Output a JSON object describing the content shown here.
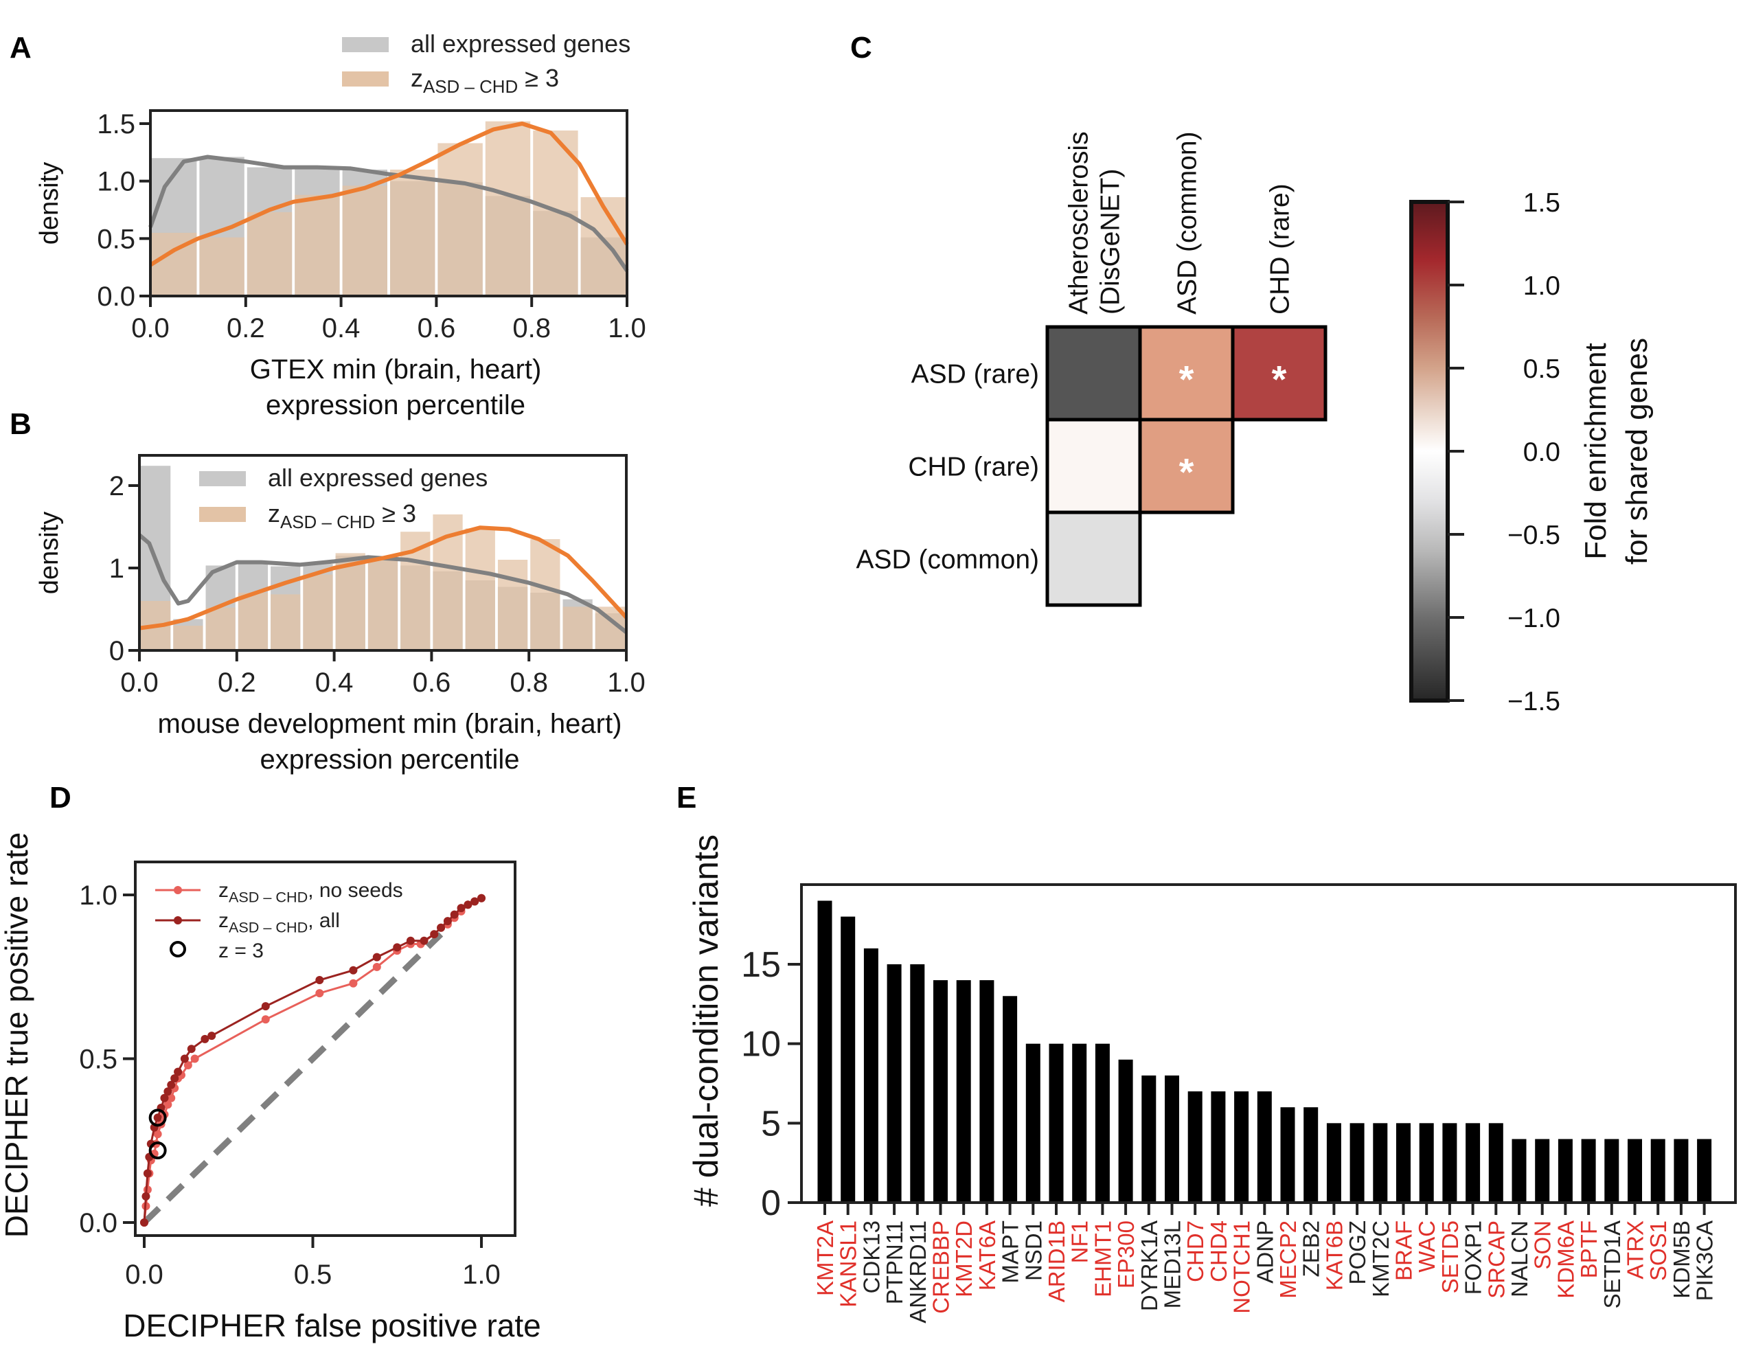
{
  "panels": {
    "A": "A",
    "B": "B",
    "C": "C",
    "D": "D",
    "E": "E"
  },
  "chart_data": [
    {
      "id": "A",
      "type": "bar",
      "subtype": "histogram_with_kde",
      "xlabel": [
        "GTEX min (brain, heart)",
        "expression percentile"
      ],
      "ylabel": "density",
      "xlim": [
        0,
        1
      ],
      "ylim": [
        0,
        1.6
      ],
      "xticks": [
        "0.0",
        "0.2",
        "0.4",
        "0.6",
        "0.8",
        "1.0"
      ],
      "xtick_values": [
        0,
        0.2,
        0.4,
        0.6,
        0.8,
        1.0
      ],
      "yticks": [
        "0.0",
        "0.5",
        "1.0",
        "1.5"
      ],
      "ytick_values": [
        0,
        0.5,
        1.0,
        1.5
      ],
      "bin_edges": [
        0,
        0.1,
        0.2,
        0.3,
        0.4,
        0.5,
        0.6,
        0.7,
        0.8,
        0.9,
        1.0
      ],
      "legend": {
        "position": "top",
        "entries": [
          {
            "label": "all expressed genes",
            "color": "#c8c8c8"
          },
          {
            "label_main": "z",
            "label_sub": "ASD – CHD",
            "label_tail": " ≥ 3",
            "color": "#e3c3a6"
          }
        ]
      },
      "series": [
        {
          "name": "all expressed genes",
          "hist_color": "#c8c8c8",
          "kde_color": "#808080",
          "values": [
            1.2,
            1.21,
            1.12,
            1.11,
            1.1,
            1.0,
            0.99,
            0.87,
            0.74,
            0.51
          ],
          "kde": [
            [
              0,
              0.6
            ],
            [
              0.03,
              0.95
            ],
            [
              0.07,
              1.17
            ],
            [
              0.12,
              1.21
            ],
            [
              0.2,
              1.17
            ],
            [
              0.28,
              1.12
            ],
            [
              0.35,
              1.12
            ],
            [
              0.42,
              1.11
            ],
            [
              0.5,
              1.06
            ],
            [
              0.58,
              1.02
            ],
            [
              0.66,
              0.98
            ],
            [
              0.72,
              0.92
            ],
            [
              0.8,
              0.82
            ],
            [
              0.88,
              0.7
            ],
            [
              0.93,
              0.58
            ],
            [
              0.97,
              0.4
            ],
            [
              1.0,
              0.22
            ]
          ]
        },
        {
          "name": "zASD-CHD ≥ 3",
          "hist_color": "#e3c3a6",
          "kde_color": "#ed7d31",
          "values": [
            0.55,
            0.51,
            0.73,
            0.88,
            0.96,
            1.1,
            1.33,
            1.52,
            1.44,
            0.86
          ],
          "kde": [
            [
              0,
              0.27
            ],
            [
              0.05,
              0.4
            ],
            [
              0.1,
              0.5
            ],
            [
              0.17,
              0.6
            ],
            [
              0.25,
              0.75
            ],
            [
              0.3,
              0.82
            ],
            [
              0.38,
              0.87
            ],
            [
              0.45,
              0.94
            ],
            [
              0.52,
              1.05
            ],
            [
              0.58,
              1.17
            ],
            [
              0.65,
              1.32
            ],
            [
              0.72,
              1.45
            ],
            [
              0.78,
              1.5
            ],
            [
              0.84,
              1.42
            ],
            [
              0.9,
              1.15
            ],
            [
              0.95,
              0.78
            ],
            [
              1.0,
              0.45
            ]
          ]
        }
      ]
    },
    {
      "id": "B",
      "type": "bar",
      "subtype": "histogram_with_kde",
      "xlabel": [
        "mouse development min (brain, heart)",
        "expression percentile"
      ],
      "ylabel": "density",
      "xlim": [
        0,
        1
      ],
      "ylim": [
        0,
        2.35
      ],
      "xticks": [
        "0.0",
        "0.2",
        "0.4",
        "0.6",
        "0.8",
        "1.0"
      ],
      "xtick_values": [
        0,
        0.2,
        0.4,
        0.6,
        0.8,
        1.0
      ],
      "yticks": [
        "0",
        "1",
        "2"
      ],
      "ytick_values": [
        0,
        1,
        2
      ],
      "n_bins": 15,
      "legend": {
        "position": "top-left",
        "entries": [
          {
            "label": "all expressed genes",
            "color": "#c8c8c8"
          },
          {
            "label_main": "z",
            "label_sub": "ASD – CHD",
            "label_tail": " ≥ 3",
            "color": "#e3c3a6"
          }
        ]
      },
      "series": [
        {
          "name": "all expressed genes",
          "hist_color": "#c8c8c8",
          "kde_color": "#808080",
          "values": [
            2.24,
            0.38,
            1.03,
            1.08,
            1.02,
            1.05,
            1.15,
            1.13,
            1.03,
            0.96,
            0.85,
            0.77,
            0.7,
            0.62,
            0.45
          ],
          "kde": [
            [
              0,
              1.4
            ],
            [
              0.02,
              1.3
            ],
            [
              0.05,
              0.85
            ],
            [
              0.08,
              0.57
            ],
            [
              0.1,
              0.6
            ],
            [
              0.15,
              0.95
            ],
            [
              0.2,
              1.07
            ],
            [
              0.25,
              1.07
            ],
            [
              0.33,
              1.04
            ],
            [
              0.4,
              1.08
            ],
            [
              0.47,
              1.13
            ],
            [
              0.55,
              1.1
            ],
            [
              0.63,
              1.02
            ],
            [
              0.72,
              0.93
            ],
            [
              0.8,
              0.82
            ],
            [
              0.88,
              0.68
            ],
            [
              0.94,
              0.5
            ],
            [
              1.0,
              0.22
            ]
          ]
        },
        {
          "name": "zASD-CHD ≥ 3",
          "hist_color": "#e3c3a6",
          "kde_color": "#ed7d31",
          "values": [
            0.6,
            0.3,
            0.52,
            0.7,
            0.68,
            0.92,
            1.18,
            1.13,
            1.44,
            1.65,
            1.48,
            1.1,
            1.35,
            0.53,
            0.53
          ],
          "kde": [
            [
              0,
              0.27
            ],
            [
              0.05,
              0.31
            ],
            [
              0.1,
              0.38
            ],
            [
              0.2,
              0.62
            ],
            [
              0.3,
              0.82
            ],
            [
              0.4,
              1.0
            ],
            [
              0.5,
              1.12
            ],
            [
              0.56,
              1.2
            ],
            [
              0.63,
              1.38
            ],
            [
              0.7,
              1.49
            ],
            [
              0.76,
              1.47
            ],
            [
              0.82,
              1.35
            ],
            [
              0.88,
              1.15
            ],
            [
              0.93,
              0.85
            ],
            [
              1.0,
              0.4
            ]
          ]
        }
      ]
    },
    {
      "id": "C",
      "type": "heatmap",
      "columns": [
        "Atherosclerosis\n(DisGeNET)",
        "ASD (common)",
        "CHD (rare)"
      ],
      "column_lines": [
        [
          "Atherosclerosis",
          "(DisGeNET)"
        ],
        [
          "ASD (common)"
        ],
        [
          "CHD (rare)"
        ]
      ],
      "rows": [
        "ASD (rare)",
        "CHD (rare)",
        "ASD (common)"
      ],
      "values": [
        [
          -1.1,
          0.55,
          1.05
        ],
        [
          0.03,
          0.55,
          null
        ],
        [
          -0.3,
          null,
          null
        ]
      ],
      "cell_colors": [
        [
          "#555555",
          "#e09e82",
          "#b04342"
        ],
        [
          "#fbf6f3",
          "#e09e82",
          null
        ],
        [
          "#e0e0e0",
          null,
          null
        ]
      ],
      "significant": [
        [
          false,
          true,
          true
        ],
        [
          false,
          true,
          null
        ],
        [
          false,
          null,
          null
        ]
      ],
      "marker": "*",
      "colorbar": {
        "label": [
          "Fold enrichment",
          "for shared genes"
        ],
        "range": [
          -1.5,
          1.5
        ],
        "ticks": [
          "1.5",
          "1.0",
          "0.5",
          "0.0",
          "−0.5",
          "−1.0",
          "−1.5"
        ],
        "tick_values": [
          1.5,
          1.0,
          0.5,
          0.0,
          -0.5,
          -1.0,
          -1.5
        ],
        "stops": [
          {
            "v": 1.5,
            "color": "#5e1a1f"
          },
          {
            "v": 1.15,
            "color": "#a4282d"
          },
          {
            "v": 0.8,
            "color": "#b86a58"
          },
          {
            "v": 0.5,
            "color": "#d3a38a"
          },
          {
            "v": 0.2,
            "color": "#eddcd1"
          },
          {
            "v": 0.0,
            "color": "#ffffff"
          },
          {
            "v": -0.3,
            "color": "#e2e2e4"
          },
          {
            "v": -0.6,
            "color": "#b8b8b8"
          },
          {
            "v": -1.0,
            "color": "#6e6e6e"
          },
          {
            "v": -1.5,
            "color": "#262626"
          }
        ]
      }
    },
    {
      "id": "D",
      "type": "line",
      "xlabel": "DECIPHER false positive rate",
      "ylabel": "DECIPHER true positive rate",
      "xlim": [
        -0.04,
        1.11
      ],
      "ylim": [
        -0.03,
        1.1
      ],
      "xticks": [
        "0.0",
        "0.5",
        "1.0"
      ],
      "xtick_values": [
        0,
        0.5,
        1.0
      ],
      "yticks": [
        "0.0",
        "0.5",
        "1.0"
      ],
      "ytick_values": [
        0,
        0.5,
        1.0
      ],
      "legend": {
        "position": "top-left",
        "entries": [
          {
            "label_main": "z",
            "label_sub": "ASD – CHD",
            "label_tail": ", no seeds",
            "color": "#e8605a",
            "kind": "line-marker"
          },
          {
            "label_main": "z",
            "label_sub": "ASD – CHD",
            "label_tail": ", all",
            "color": "#9b2320",
            "kind": "line-marker"
          },
          {
            "label_main": "z =  3",
            "color": "#000000",
            "kind": "open-circle"
          }
        ]
      },
      "series": [
        {
          "name": "zASD-CHD, no seeds",
          "color": "#e8605a",
          "points": [
            [
              0,
              0
            ],
            [
              0.005,
              0.05
            ],
            [
              0.01,
              0.1
            ],
            [
              0.015,
              0.15
            ],
            [
              0.02,
              0.19
            ],
            [
              0.03,
              0.21
            ],
            [
              0.035,
              0.24
            ],
            [
              0.04,
              0.27
            ],
            [
              0.05,
              0.3
            ],
            [
              0.06,
              0.33
            ],
            [
              0.07,
              0.36
            ],
            [
              0.08,
              0.38
            ],
            [
              0.09,
              0.41
            ],
            [
              0.1,
              0.44
            ],
            [
              0.11,
              0.45
            ],
            [
              0.13,
              0.48
            ],
            [
              0.15,
              0.5
            ],
            [
              0.36,
              0.62
            ],
            [
              0.52,
              0.7
            ],
            [
              0.62,
              0.73
            ],
            [
              0.69,
              0.78
            ],
            [
              0.75,
              0.83
            ],
            [
              0.79,
              0.85
            ],
            [
              0.82,
              0.85
            ],
            [
              0.86,
              0.88
            ],
            [
              0.88,
              0.9
            ],
            [
              0.9,
              0.91
            ],
            [
              0.92,
              0.93
            ],
            [
              0.94,
              0.95
            ],
            [
              0.96,
              0.97
            ],
            [
              0.98,
              0.98
            ],
            [
              1.0,
              0.99
            ]
          ]
        },
        {
          "name": "zASD-CHD, all",
          "color": "#9b2320",
          "points": [
            [
              0,
              0
            ],
            [
              0.005,
              0.08
            ],
            [
              0.01,
              0.15
            ],
            [
              0.015,
              0.2
            ],
            [
              0.02,
              0.24
            ],
            [
              0.03,
              0.29
            ],
            [
              0.04,
              0.32
            ],
            [
              0.05,
              0.35
            ],
            [
              0.06,
              0.38
            ],
            [
              0.07,
              0.4
            ],
            [
              0.08,
              0.42
            ],
            [
              0.09,
              0.44
            ],
            [
              0.1,
              0.46
            ],
            [
              0.12,
              0.5
            ],
            [
              0.14,
              0.53
            ],
            [
              0.18,
              0.56
            ],
            [
              0.2,
              0.57
            ],
            [
              0.36,
              0.66
            ],
            [
              0.52,
              0.74
            ],
            [
              0.62,
              0.77
            ],
            [
              0.69,
              0.81
            ],
            [
              0.75,
              0.84
            ],
            [
              0.79,
              0.86
            ],
            [
              0.83,
              0.86
            ],
            [
              0.86,
              0.88
            ],
            [
              0.88,
              0.9
            ],
            [
              0.9,
              0.92
            ],
            [
              0.92,
              0.94
            ],
            [
              0.94,
              0.96
            ],
            [
              0.96,
              0.97
            ],
            [
              0.98,
              0.98
            ],
            [
              1.0,
              0.99
            ]
          ]
        }
      ],
      "threshold_points": [
        [
          0.04,
          0.32
        ],
        [
          0.04,
          0.22
        ]
      ],
      "diagonal": {
        "color": "#808080",
        "style": "dashed",
        "from": [
          0,
          0
        ],
        "to": [
          0.88,
          0.88
        ]
      }
    },
    {
      "id": "E",
      "type": "bar",
      "ylabel": "# dual-condition variants",
      "ylim": [
        0,
        19.8
      ],
      "yticks": [
        "0",
        "5",
        "10",
        "15"
      ],
      "ytick_values": [
        0,
        5,
        10,
        15
      ],
      "bar_color": "#000000",
      "highlight_label_color": "#e0302a",
      "normal_label_color": "#222222",
      "categories": [
        "KMT2A",
        "KANSL1",
        "CDK13",
        "PTPN11",
        "ANKRD11",
        "CREBBP",
        "KMT2D",
        "KAT6A",
        "MAPT",
        "NSD1",
        "ARID1B",
        "NF1",
        "EHMT1",
        "EP300",
        "DYRK1A",
        "MED13L",
        "CHD7",
        "CHD4",
        "NOTCH1",
        "ADNP",
        "MECP2",
        "ZEB2",
        "KAT6B",
        "POGZ",
        "KMT2C",
        "BRAF",
        "WAC",
        "SETD5",
        "FOXP1",
        "SRCAP",
        "NALCN",
        "SON",
        "KDM6A",
        "BPTF",
        "SETD1A",
        "ATRX",
        "SOS1",
        "KDM5B",
        "PIK3CA"
      ],
      "values": [
        19,
        18,
        16,
        15,
        15,
        14,
        14,
        14,
        13,
        10,
        10,
        10,
        10,
        9,
        8,
        8,
        7,
        7,
        7,
        7,
        6,
        6,
        5,
        5,
        5,
        5,
        5,
        5,
        5,
        5,
        4,
        4,
        4,
        4,
        4,
        4,
        4,
        4,
        4
      ],
      "highlighted": [
        true,
        true,
        false,
        false,
        false,
        true,
        true,
        true,
        false,
        false,
        true,
        true,
        true,
        true,
        false,
        false,
        true,
        true,
        true,
        false,
        true,
        false,
        true,
        false,
        false,
        true,
        true,
        true,
        false,
        true,
        false,
        true,
        true,
        true,
        false,
        true,
        true,
        false,
        false
      ]
    }
  ]
}
